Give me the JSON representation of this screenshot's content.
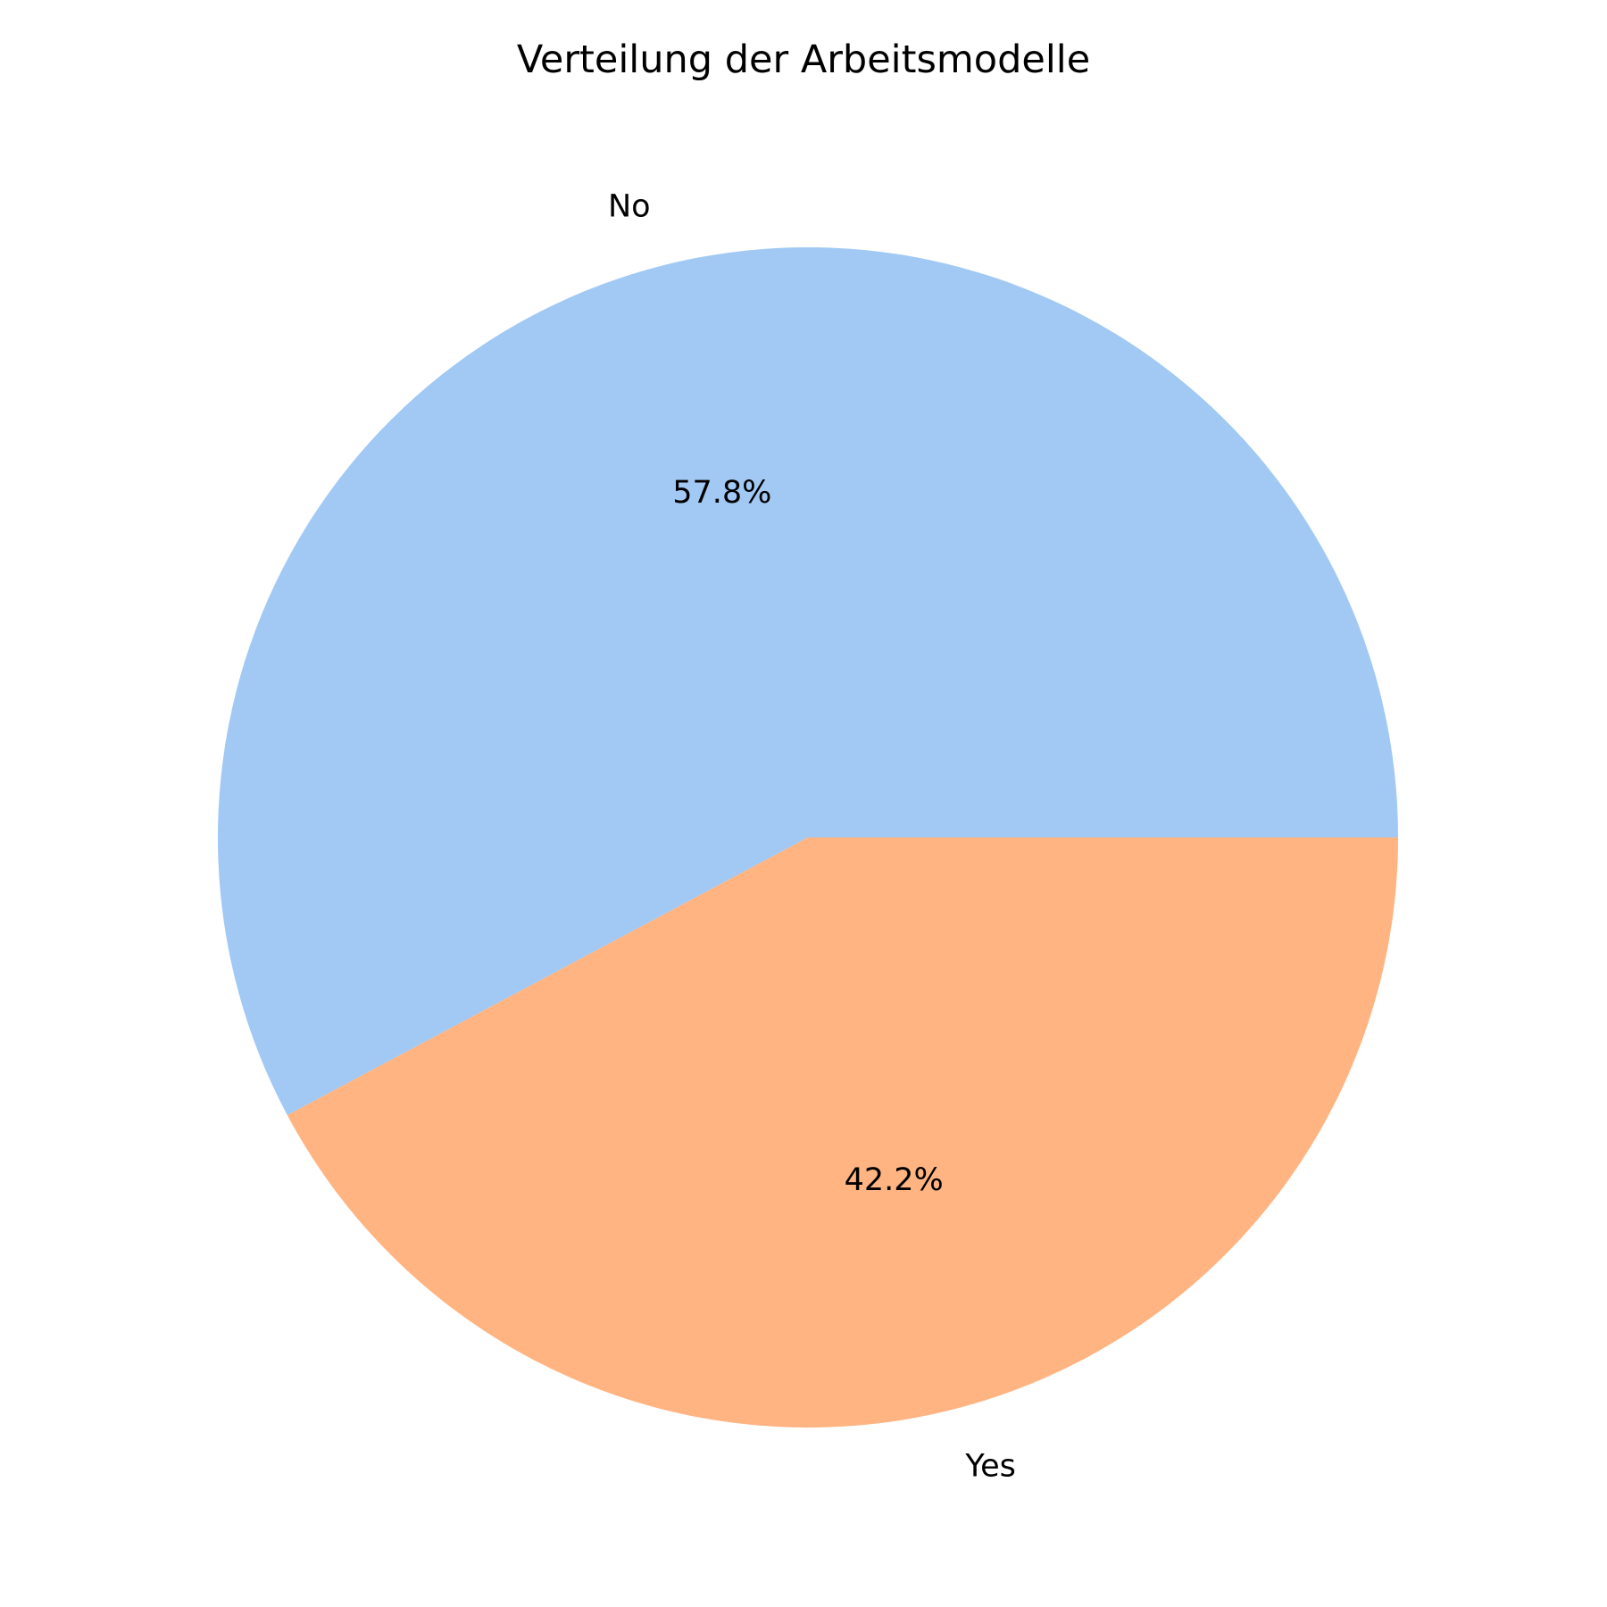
{
  "chart_data": {
    "type": "pie",
    "title": "Verteilung der Arbeitsmodelle",
    "slices": [
      {
        "label": "No",
        "value": 57.8,
        "pct_label": "57.8%",
        "color": "#a1c9f4"
      },
      {
        "label": "Yes",
        "value": 42.2,
        "pct_label": "42.2%",
        "color": "#ffb482"
      }
    ],
    "start_angle_deg": 0,
    "direction": "counterclockwise",
    "legend": "none"
  }
}
